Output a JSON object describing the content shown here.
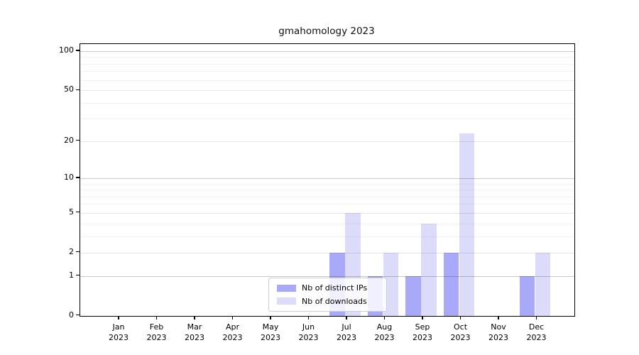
{
  "chart_data": {
    "type": "bar",
    "title": "gmahomology 2023",
    "categories": [
      "Jan",
      "Feb",
      "Mar",
      "Apr",
      "May",
      "Jun",
      "Jul",
      "Aug",
      "Sep",
      "Oct",
      "Nov",
      "Dec"
    ],
    "category_year": "2023",
    "series": [
      {
        "name": "Nb of distinct IPs",
        "color": "#a9a9f9",
        "values": [
          0,
          0,
          0,
          0,
          0,
          0,
          2,
          1,
          1,
          2,
          0,
          1
        ]
      },
      {
        "name": "Nb of downloads",
        "color": "#dcdcfa",
        "values": [
          0,
          0,
          0,
          0,
          0,
          0,
          5,
          2,
          4,
          23,
          0,
          2
        ]
      }
    ],
    "y_scale": "log1p",
    "y_axis": {
      "labeled_ticks": [
        0,
        1,
        2,
        5,
        10,
        20,
        50,
        100
      ],
      "major_gridlines": [
        1,
        10,
        100
      ],
      "mid_gridlines": [
        2,
        5,
        20,
        50
      ],
      "minor_gridlines": [
        3,
        4,
        6,
        7,
        8,
        9,
        30,
        40,
        60,
        70,
        80,
        90
      ],
      "max_tick": 100
    },
    "grid": "horizontal",
    "legend_position": "lower-center",
    "colors": {
      "grid_major": "rgba(0,0,0,0.22)",
      "grid_mid": "rgba(0,0,0,0.10)",
      "grid_minor": "rgba(0,0,0,0.05)",
      "axis": "#000000"
    }
  }
}
